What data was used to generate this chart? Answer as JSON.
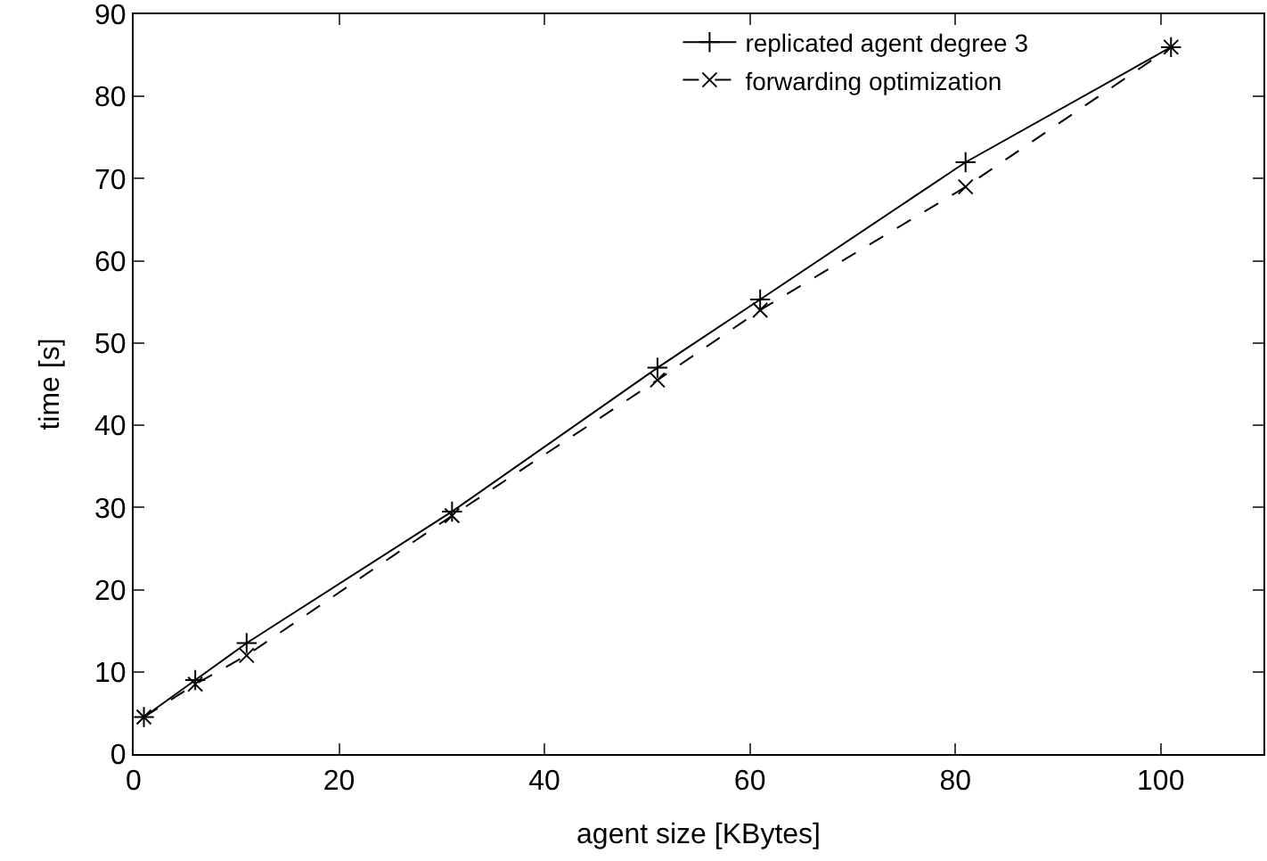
{
  "chart_data": {
    "type": "line",
    "xlabel": "agent size [KBytes]",
    "ylabel": "time [s]",
    "x": [
      1,
      6,
      11,
      31,
      51,
      61,
      81,
      101
    ],
    "series": [
      {
        "name": "replicated agent degree 3",
        "color": "#000000",
        "values": [
          4.5,
          9,
          13.5,
          29.5,
          47,
          55.3,
          72,
          86
        ],
        "marker": "cross",
        "line_style": "solid"
      },
      {
        "name": "forwarding optimization",
        "color": "#000000",
        "values": [
          4.5,
          8.5,
          12,
          29,
          45.5,
          54,
          69,
          86
        ],
        "marker": "x",
        "line_style": "dashed"
      }
    ],
    "xlim": [
      0,
      110
    ],
    "xticks": [
      0,
      20,
      40,
      60,
      80,
      100
    ],
    "ylim": [
      0,
      90
    ],
    "yticks": [
      0,
      10,
      20,
      30,
      40,
      50,
      60,
      70,
      80,
      90
    ],
    "legend": "top right"
  }
}
